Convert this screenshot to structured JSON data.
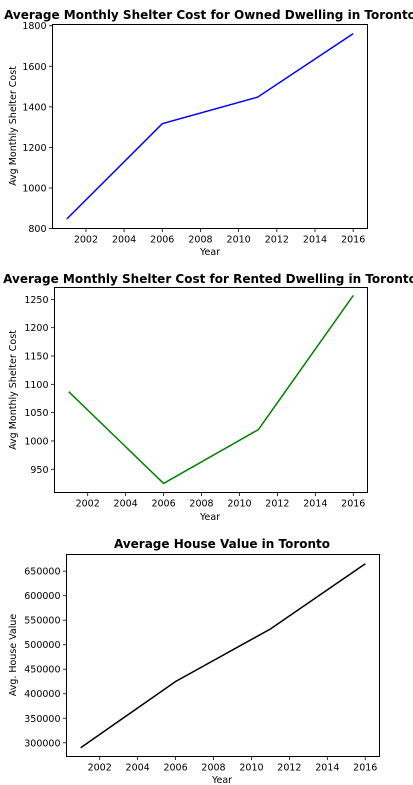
{
  "chart_data": [
    {
      "type": "line",
      "title": "Average Monthly Shelter Cost for Owned Dwelling in Toronto",
      "xlabel": "Year",
      "ylabel": "Avg Monthly Shelter Cost",
      "x": [
        2001,
        2006,
        2011,
        2016
      ],
      "series": [
        {
          "values": [
            847,
            1317,
            1448,
            1761
          ],
          "color": "#0000ff"
        }
      ],
      "xlim": [
        2000.25,
        2016.75
      ],
      "ylim": [
        800,
        1806
      ],
      "xticks": [
        2002,
        2004,
        2006,
        2008,
        2010,
        2012,
        2014,
        2016
      ],
      "yticks": [
        800,
        1000,
        1200,
        1400,
        1600,
        1800
      ],
      "grid": false
    },
    {
      "type": "line",
      "title": "Average Monthly Shelter Cost for Rented Dwelling in Toronto",
      "xlabel": "Year",
      "ylabel": "Avg Monthly Shelter Cost",
      "x": [
        2001,
        2006,
        2011,
        2016
      ],
      "series": [
        {
          "values": [
            1087,
            925,
            1020,
            1257
          ],
          "color": "#008000"
        }
      ],
      "xlim": [
        2000.25,
        2016.75
      ],
      "ylim": [
        909,
        1271
      ],
      "xticks": [
        2002,
        2004,
        2006,
        2008,
        2010,
        2012,
        2014,
        2016
      ],
      "yticks": [
        950,
        1000,
        1050,
        1100,
        1150,
        1200,
        1250
      ],
      "grid": false
    },
    {
      "type": "line",
      "title": "Average House Value in Toronto",
      "xlabel": "Year",
      "ylabel": "Avg. House Value",
      "x": [
        2001,
        2006,
        2011,
        2016
      ],
      "series": [
        {
          "values": [
            290000,
            425000,
            532000,
            665000
          ],
          "color": "#000000"
        }
      ],
      "xlim": [
        2000.25,
        2016.75
      ],
      "ylim": [
        272000,
        684000
      ],
      "xticks": [
        2002,
        2004,
        2006,
        2008,
        2010,
        2012,
        2014,
        2016
      ],
      "yticks": [
        300000,
        350000,
        400000,
        450000,
        500000,
        550000,
        600000,
        650000
      ],
      "grid": false
    }
  ]
}
